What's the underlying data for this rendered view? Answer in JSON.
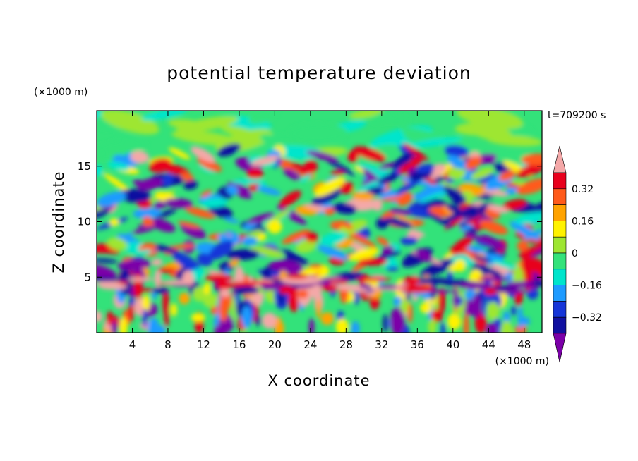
{
  "chart_data": {
    "type": "heatmap",
    "title": "potential temperature deviation",
    "xlabel": "X coordinate",
    "ylabel": "Z coordinate",
    "x_unit": "(×1000 m)",
    "y_unit": "(×1000 m)",
    "time_label": "t=709200 s",
    "xlim": [
      0,
      50
    ],
    "ylim": [
      0,
      20
    ],
    "x_ticks": [
      4,
      8,
      12,
      16,
      20,
      24,
      28,
      32,
      36,
      40,
      44,
      48
    ],
    "y_ticks": [
      5,
      10,
      15
    ],
    "colorbar": {
      "labels": [
        "0.32",
        "0.16",
        "0",
        "−0.16",
        "−0.32"
      ],
      "label_values": [
        0.32,
        0.16,
        0,
        -0.16,
        -0.32
      ],
      "levels": [
        -0.4,
        -0.32,
        -0.24,
        -0.16,
        -0.08,
        0,
        0.08,
        0.16,
        0.24,
        0.32,
        0.4
      ],
      "colors": [
        "#7b00a8",
        "#1010a0",
        "#1535d8",
        "#1e9bff",
        "#00e5cc",
        "#33e27a",
        "#9ee632",
        "#fff200",
        "#ffa300",
        "#ff5a1a",
        "#e8001c",
        "#f4a8a8"
      ]
    }
  }
}
